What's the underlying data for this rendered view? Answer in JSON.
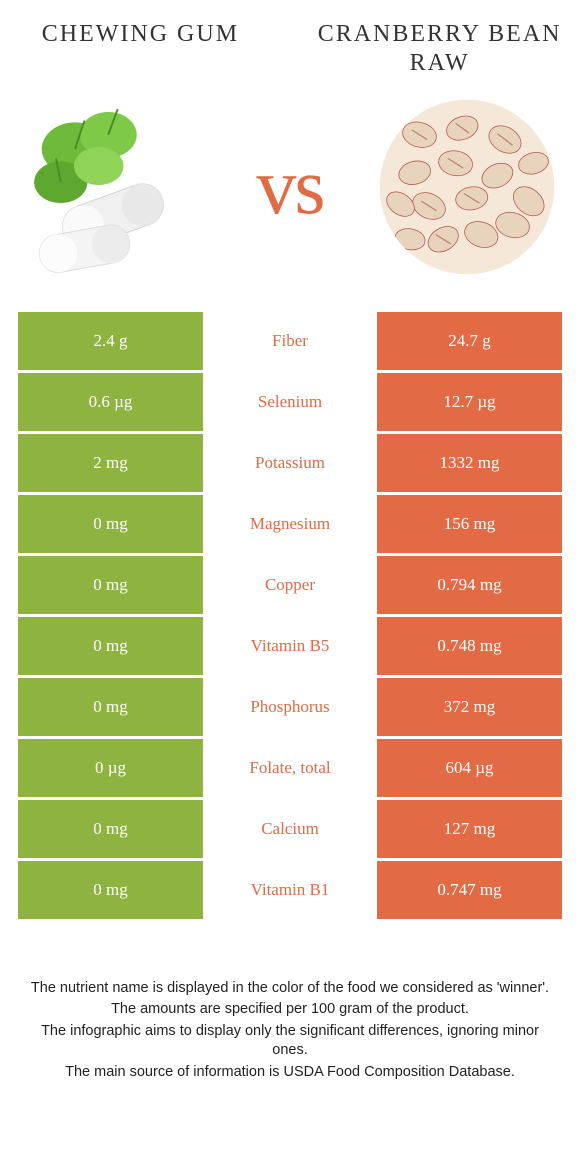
{
  "food_left": {
    "name": "Chewing Gum"
  },
  "food_right": {
    "name": "Cranberry Bean Raw"
  },
  "vs_text": "vs",
  "colors": {
    "left": "#8eb340",
    "right": "#e26a45",
    "bg": "#ffffff"
  },
  "rows": [
    {
      "left": "2.4 g",
      "nutrient": "Fiber",
      "right": "24.7 g",
      "winner": "right"
    },
    {
      "left": "0.6 µg",
      "nutrient": "Selenium",
      "right": "12.7 µg",
      "winner": "right"
    },
    {
      "left": "2 mg",
      "nutrient": "Potassium",
      "right": "1332 mg",
      "winner": "right"
    },
    {
      "left": "0 mg",
      "nutrient": "Magnesium",
      "right": "156 mg",
      "winner": "right"
    },
    {
      "left": "0 mg",
      "nutrient": "Copper",
      "right": "0.794 mg",
      "winner": "right"
    },
    {
      "left": "0 mg",
      "nutrient": "Vitamin B5",
      "right": "0.748 mg",
      "winner": "right"
    },
    {
      "left": "0 mg",
      "nutrient": "Phosphorus",
      "right": "372 mg",
      "winner": "right"
    },
    {
      "left": "0 µg",
      "nutrient": "Folate, total",
      "right": "604 µg",
      "winner": "right"
    },
    {
      "left": "0 mg",
      "nutrient": "Calcium",
      "right": "127 mg",
      "winner": "right"
    },
    {
      "left": "0 mg",
      "nutrient": "Vitamin B1",
      "right": "0.747 mg",
      "winner": "right"
    }
  ],
  "footer": {
    "line1": "The nutrient name is displayed in the color of the food we considered as 'winner'.",
    "line2": "The amounts are specified per 100 gram of the product.",
    "line3": "The infographic aims to display only the significant differences, ignoring minor ones.",
    "line4": "The main source of information is USDA Food Composition Database."
  }
}
